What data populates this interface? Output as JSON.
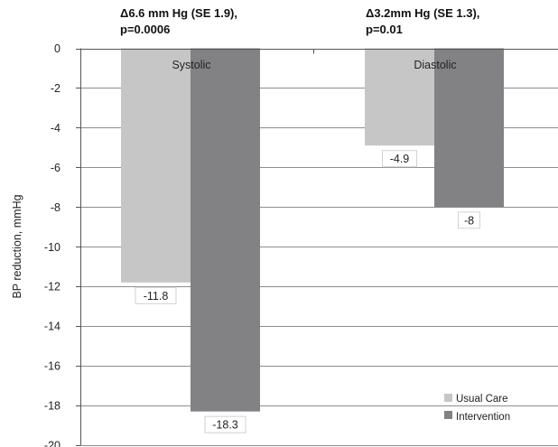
{
  "chart_data": {
    "type": "bar",
    "categories": [
      "Systolic",
      "Diastolic"
    ],
    "series": [
      {
        "name": "Usual Care",
        "values": [
          -11.8,
          -4.9
        ],
        "color": "#c6c6c6"
      },
      {
        "name": "Intervention",
        "values": [
          -18.3,
          -8
        ],
        "color": "#828285"
      }
    ],
    "data_labels": [
      [
        "-11.8",
        "-4.9"
      ],
      [
        "-18.3",
        "-8"
      ]
    ],
    "annotations": [
      {
        "line1": "Δ6.6 mm Hg (SE 1.9),",
        "line2": "p=0.0006"
      },
      {
        "line1": "Δ3.2mm Hg (SE 1.3),",
        "line2": "p=0.01"
      }
    ],
    "ylabel": "BP reduction, mmHg",
    "ylim": [
      -20,
      0
    ],
    "yticks": [
      "0",
      "-2",
      "-4",
      "-6",
      "-8",
      "-10",
      "-12",
      "-14",
      "-16",
      "-18",
      "-20"
    ],
    "grid": true,
    "legend_position": "bottom-right"
  }
}
